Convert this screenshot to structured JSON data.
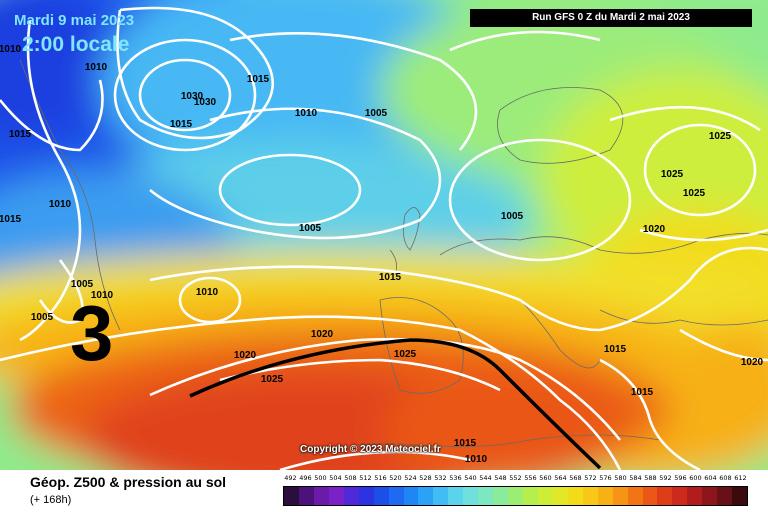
{
  "header": {
    "date": "Mardi 9 mai 2023",
    "time": "2:00 locale",
    "run": "Run GFS 0 Z du Mardi 2 mai 2023"
  },
  "annotation_number": "3",
  "copyright": "Copyright © 2023 Meteociel.fr",
  "footer": {
    "title": "Géop. Z500 & pression au sol",
    "subtitle": "(+ 168h)"
  },
  "scale": {
    "values": [
      "492",
      "496",
      "500",
      "504",
      "508",
      "512",
      "516",
      "520",
      "524",
      "528",
      "532",
      "536",
      "540",
      "544",
      "548",
      "552",
      "556",
      "560",
      "564",
      "568",
      "572",
      "576",
      "580",
      "584",
      "588",
      "592",
      "596",
      "600",
      "604",
      "608",
      "612"
    ],
    "colors": [
      "#2a0e3c",
      "#4b137a",
      "#6a1ca8",
      "#7a22c8",
      "#4e2ad8",
      "#2c33e0",
      "#1e4ee8",
      "#1e6af0",
      "#1e87f5",
      "#2aa2f8",
      "#40bdf5",
      "#5ad3ec",
      "#6fe0dc",
      "#7de8c0",
      "#8aeb9c",
      "#9ded72",
      "#b4ef4e",
      "#cdee36",
      "#e3e826",
      "#f2dc1a",
      "#f7c817",
      "#f8b015",
      "#f79414",
      "#f27514",
      "#ea5716",
      "#df3d1a",
      "#cd2a1d",
      "#b11d1f",
      "#8e141d",
      "#681018",
      "#3a0a0e"
    ]
  },
  "isobar_labels": [
    "1010",
    "1010",
    "1015",
    "1015",
    "1030",
    "1030",
    "1010",
    "1005",
    "1015",
    "1010",
    "1005",
    "1025",
    "1025",
    "1025",
    "1015",
    "1005",
    "1005",
    "1015",
    "1005",
    "1010",
    "1010",
    "1020",
    "1020",
    "1020",
    "1025",
    "1025",
    "1015",
    "1015",
    "1015",
    "1020",
    "1010"
  ],
  "colors": {
    "banner_bg": "#000000",
    "header_text": "#7fe6ff",
    "isobar": "#ffffff",
    "front": "#000000"
  }
}
